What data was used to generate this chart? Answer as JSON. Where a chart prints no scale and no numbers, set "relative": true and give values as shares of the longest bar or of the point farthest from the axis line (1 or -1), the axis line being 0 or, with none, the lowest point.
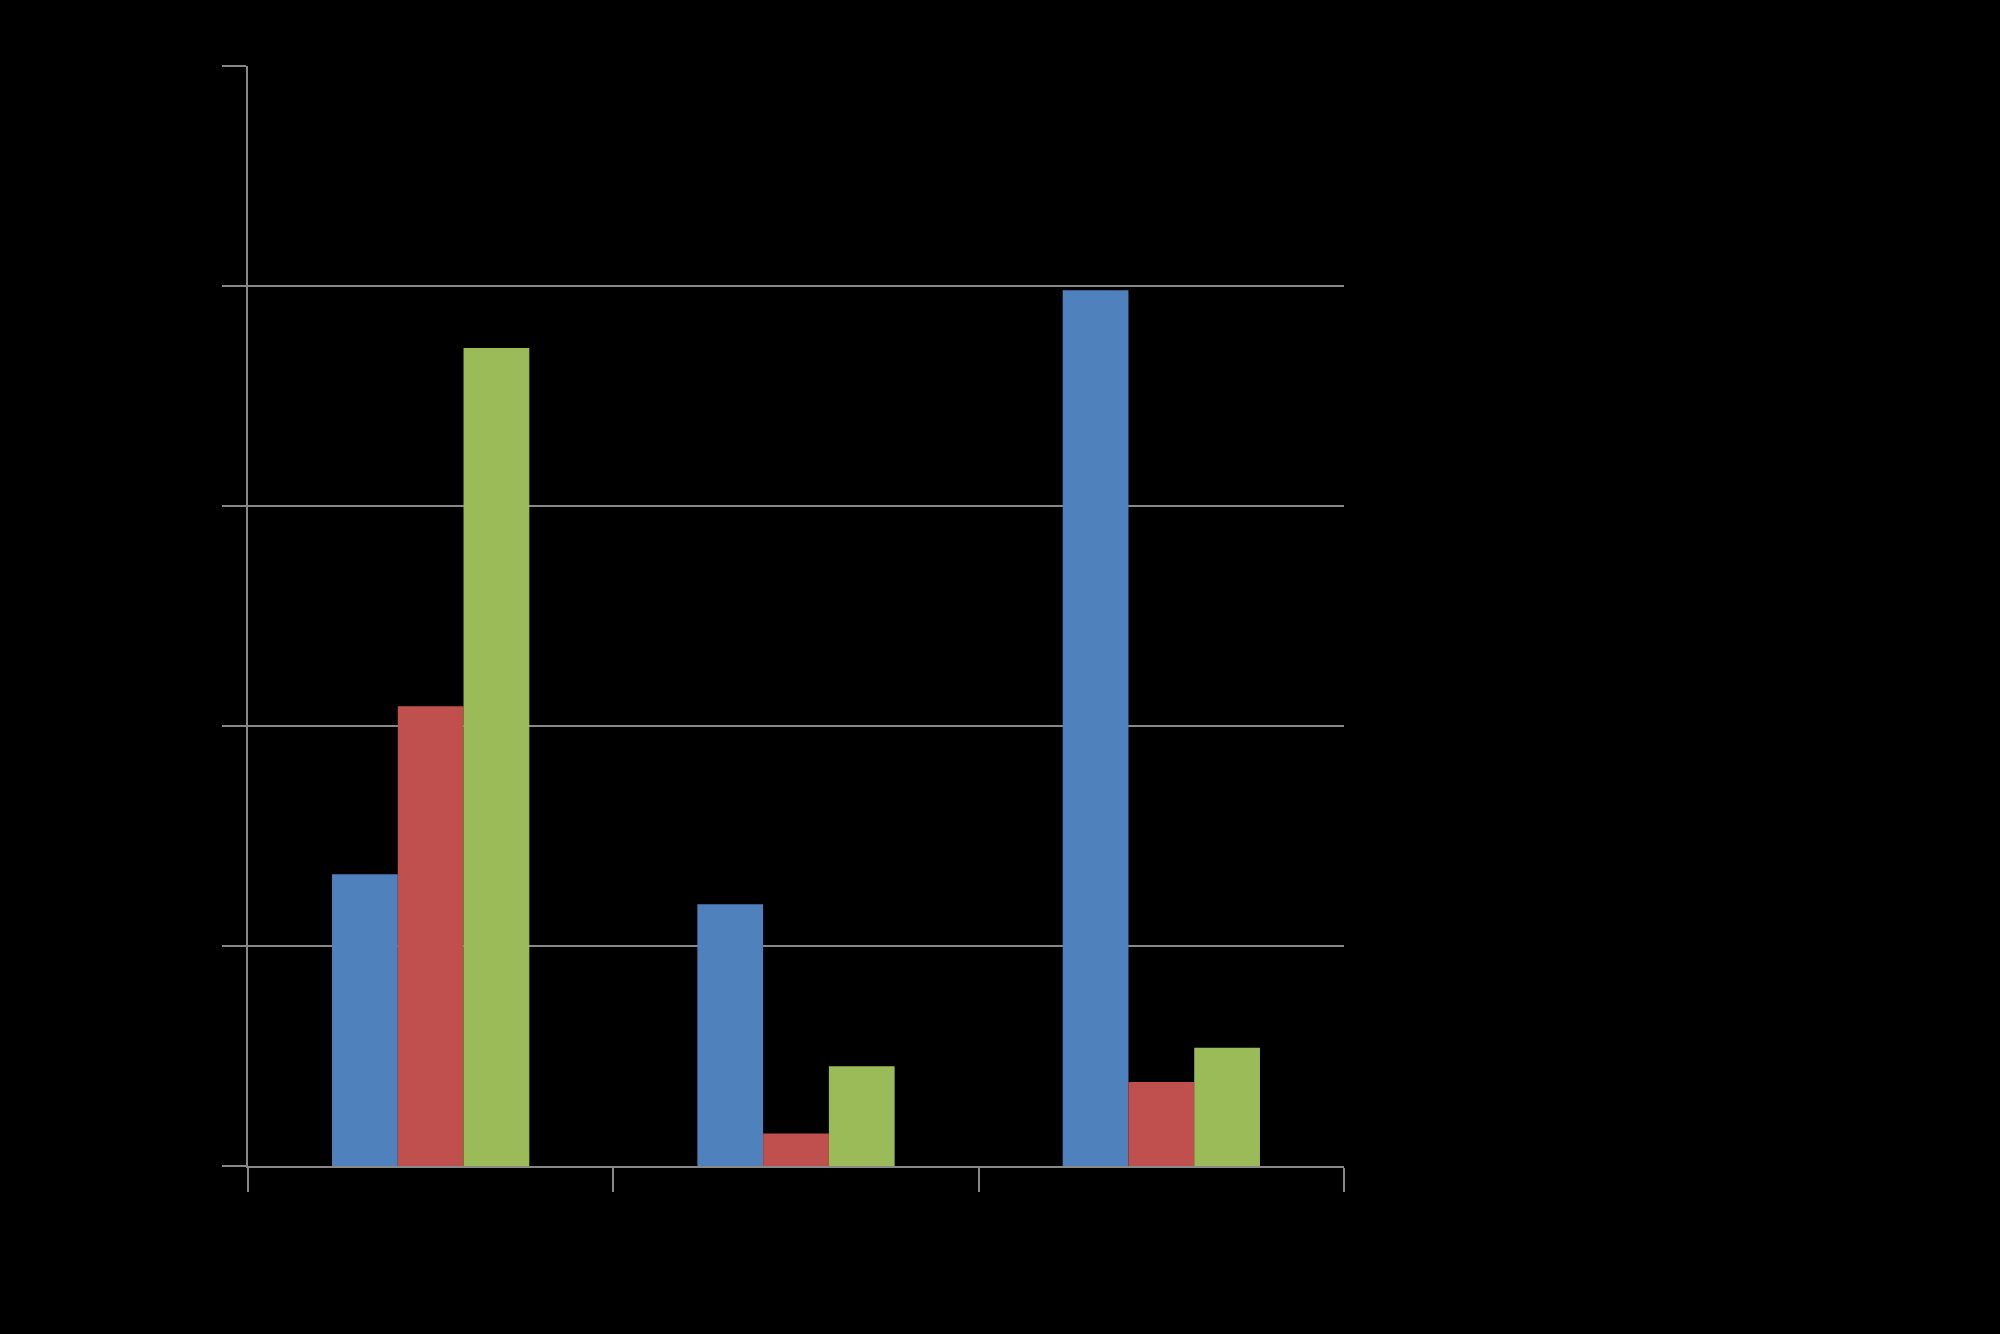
{
  "chart_data": {
    "type": "bar",
    "relative": true,
    "categories": [
      null,
      null,
      null
    ],
    "series": [
      {
        "color": "#4f81bd",
        "values": [
          0.333,
          0.299,
          1
        ]
      },
      {
        "color": "#c0504d",
        "values": [
          0.525,
          0.037,
          0.096
        ]
      },
      {
        "color": "#9bbb59",
        "values": [
          0.934,
          0.114,
          0.135
        ]
      }
    ],
    "grid": "y"
  }
}
